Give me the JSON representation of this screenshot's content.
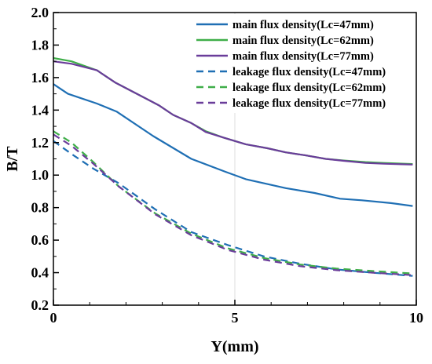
{
  "chart_data": {
    "type": "line",
    "xlabel": "Y(mm)",
    "ylabel": "B/T",
    "xlim": [
      0,
      10
    ],
    "ylim": [
      0.2,
      2.0
    ],
    "xticks": [
      "0",
      "5",
      "10"
    ],
    "yticks": [
      "0.2",
      "0.4",
      "0.6",
      "0.8",
      "1.0",
      "1.2",
      "1.4",
      "1.6",
      "1.8",
      "2.0"
    ],
    "grid": true,
    "legend_position": "top-right",
    "series": [
      {
        "name": "main flux density(Lc=47mm)",
        "color": "#1f6fb4",
        "dash": false,
        "x": [
          0,
          0.4,
          1.2,
          1.75,
          2.75,
          3.8,
          4.75,
          5.3,
          6.4,
          7.2,
          7.9,
          8.5,
          9.3,
          9.9
        ],
        "y": [
          1.56,
          1.5,
          1.44,
          1.39,
          1.24,
          1.1,
          1.02,
          0.975,
          0.92,
          0.89,
          0.855,
          0.845,
          0.828,
          0.81
        ]
      },
      {
        "name": "main flux density(Lc=62mm)",
        "color": "#3fae49",
        "dash": false,
        "x": [
          0,
          0.5,
          1.2,
          1.7,
          2.3,
          2.9,
          3.3,
          3.8,
          4.2,
          4.7,
          5.3,
          5.9,
          6.4,
          7.0,
          7.5,
          8.0,
          8.6,
          9.1,
          9.9
        ],
        "y": [
          1.72,
          1.7,
          1.645,
          1.57,
          1.5,
          1.43,
          1.37,
          1.32,
          1.27,
          1.23,
          1.19,
          1.165,
          1.14,
          1.12,
          1.1,
          1.09,
          1.08,
          1.075,
          1.068
        ]
      },
      {
        "name": "main flux density(Lc=77mm)",
        "color": "#6a3d9a",
        "dash": false,
        "x": [
          0,
          0.5,
          1.2,
          1.7,
          2.3,
          2.9,
          3.3,
          3.8,
          4.2,
          4.7,
          5.3,
          5.9,
          6.4,
          7.0,
          7.5,
          8.0,
          8.6,
          9.1,
          9.9
        ],
        "y": [
          1.7,
          1.685,
          1.645,
          1.57,
          1.5,
          1.43,
          1.37,
          1.32,
          1.265,
          1.23,
          1.19,
          1.165,
          1.14,
          1.12,
          1.1,
          1.088,
          1.075,
          1.07,
          1.065
        ]
      },
      {
        "name": "leakage flux density(Lc=47mm)",
        "color": "#1f6fb4",
        "dash": true,
        "x": [
          0,
          0.5,
          1.1,
          1.8,
          2.8,
          3.8,
          4.8,
          5.8,
          6.8,
          7.8,
          8.8,
          9.9
        ],
        "y": [
          1.21,
          1.13,
          1.04,
          0.95,
          0.79,
          0.65,
          0.57,
          0.5,
          0.455,
          0.42,
          0.4,
          0.38
        ]
      },
      {
        "name": "leakage flux density(Lc=62mm)",
        "color": "#3fae49",
        "dash": true,
        "x": [
          0,
          0.5,
          1.1,
          1.8,
          2.8,
          3.8,
          4.8,
          5.8,
          6.8,
          7.8,
          8.8,
          9.9
        ],
        "y": [
          1.27,
          1.2,
          1.08,
          0.93,
          0.765,
          0.64,
          0.55,
          0.49,
          0.45,
          0.425,
          0.41,
          0.395
        ]
      },
      {
        "name": "leakage flux density(Lc=77mm)",
        "color": "#6a3d9a",
        "dash": true,
        "x": [
          0,
          0.5,
          1.1,
          1.8,
          2.8,
          3.8,
          4.8,
          5.8,
          6.8,
          7.8,
          8.8,
          9.9
        ],
        "y": [
          1.25,
          1.18,
          1.07,
          0.93,
          0.76,
          0.63,
          0.54,
          0.48,
          0.44,
          0.415,
          0.4,
          0.385
        ]
      }
    ]
  }
}
